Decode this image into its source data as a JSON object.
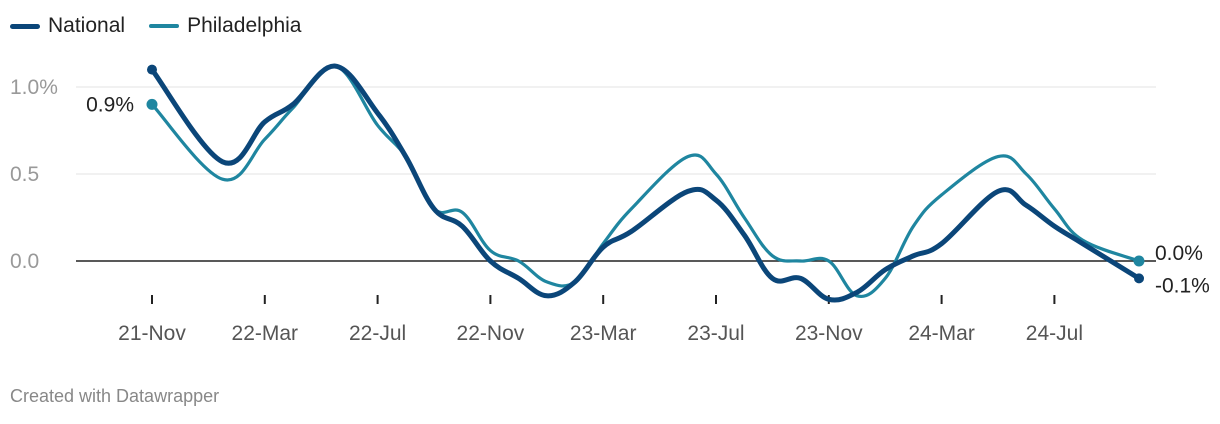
{
  "legend": {
    "national": "National",
    "philadelphia": "Philadelphia"
  },
  "footer": "Created with Datawrapper",
  "colors": {
    "national": "#0b4679",
    "philadelphia": "#1f86a0",
    "grid": "#e3e3e3",
    "zero": "#222222",
    "tick_label": "#999999",
    "x_label": "#555555"
  },
  "chart_data": {
    "type": "line",
    "title": "",
    "xlabel": "",
    "ylabel": "",
    "ylim": [
      -0.22,
      1.2
    ],
    "y_ticks": [
      {
        "value": 1.0,
        "label": "1.0%"
      },
      {
        "value": 0.5,
        "label": "0.5"
      },
      {
        "value": 0.0,
        "label": "0.0"
      }
    ],
    "x_ticks": [
      {
        "month": 0,
        "label": "21-Nov"
      },
      {
        "month": 4,
        "label": "22-Mar"
      },
      {
        "month": 8,
        "label": "22-Jul"
      },
      {
        "month": 12,
        "label": "22-Nov"
      },
      {
        "month": 16,
        "label": "23-Mar"
      },
      {
        "month": 20,
        "label": "23-Jul"
      },
      {
        "month": 24,
        "label": "23-Nov"
      },
      {
        "month": 28,
        "label": "24-Mar"
      },
      {
        "month": 32,
        "label": "24-Jul"
      }
    ],
    "x_domain": [
      0,
      35
    ],
    "series": [
      {
        "name": "National",
        "color": "#0b4679",
        "x": [
          0,
          2.5,
          4,
          5,
          6.5,
          8,
          9,
          10,
          11,
          12,
          13,
          14,
          15,
          16,
          17,
          19,
          20,
          21,
          22,
          23,
          24,
          25,
          26,
          27,
          28,
          30,
          31,
          32,
          33,
          35
        ],
        "y": [
          1.1,
          0.57,
          0.8,
          0.9,
          1.12,
          0.85,
          0.6,
          0.3,
          0.2,
          0.0,
          -0.1,
          -0.2,
          -0.12,
          0.08,
          0.17,
          0.4,
          0.35,
          0.15,
          -0.1,
          -0.1,
          -0.22,
          -0.18,
          -0.05,
          0.03,
          0.1,
          0.4,
          0.32,
          0.2,
          0.1,
          -0.1
        ],
        "end_label": "-0.1%",
        "start_label": ""
      },
      {
        "name": "Philadelphia",
        "color": "#1f86a0",
        "x": [
          0,
          2.5,
          4,
          5,
          6.5,
          8,
          9,
          10,
          11,
          12,
          13,
          14,
          15,
          16,
          17,
          19,
          20,
          21,
          22,
          23,
          24,
          25,
          26,
          27,
          28,
          30,
          31,
          32,
          33,
          35
        ],
        "y": [
          0.9,
          0.47,
          0.7,
          0.88,
          1.12,
          0.78,
          0.6,
          0.3,
          0.28,
          0.06,
          0.0,
          -0.12,
          -0.12,
          0.1,
          0.3,
          0.6,
          0.5,
          0.25,
          0.03,
          0.0,
          0.0,
          -0.2,
          -0.1,
          0.2,
          0.38,
          0.6,
          0.5,
          0.3,
          0.12,
          0.0
        ],
        "end_label": "0.0%",
        "start_label": "0.9%"
      }
    ]
  }
}
